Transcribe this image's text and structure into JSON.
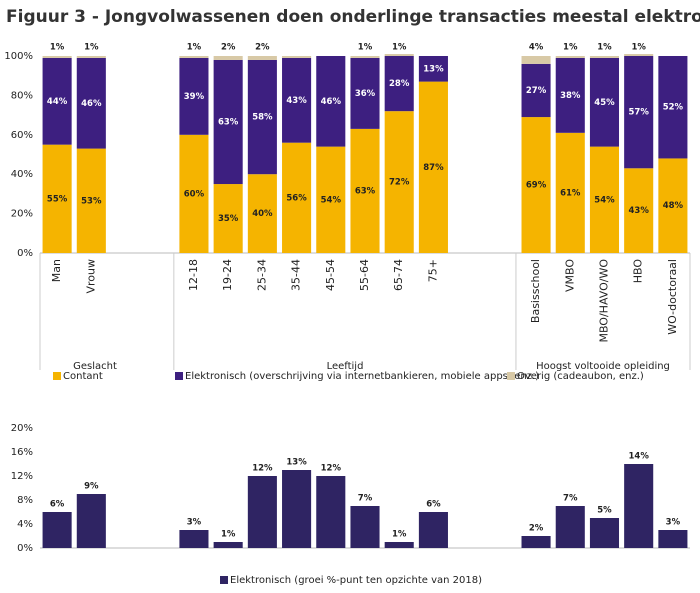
{
  "chart_data": [
    {
      "type": "bar",
      "stacked": true,
      "title": "Figuur 3 - Jongvolwassenen doen onderlinge transacties meestal elektronisch",
      "categories": [
        "Man",
        "Vrouw",
        null,
        null,
        "12-18",
        "19-24",
        "25-34",
        "35-44",
        "45-54",
        "55-64",
        "65-74",
        "75+",
        null,
        null,
        "Basisschool",
        "VMBO",
        "MBO/HAVO/WO",
        "HBO",
        "WO-doctoraal"
      ],
      "annotations": [
        "Geslacht",
        "Leeftijd",
        "Hoogst voltooide opleiding"
      ],
      "series": [
        {
          "name": "Contant",
          "color": "#f5b400",
          "values": [
            55,
            53,
            null,
            null,
            60,
            35,
            40,
            56,
            54,
            63,
            72,
            87,
            null,
            null,
            69,
            61,
            54,
            43,
            48
          ],
          "value_labels": [
            "55%",
            "53%",
            null,
            null,
            "60%",
            "35%",
            "40%",
            "56%",
            "54%",
            "63%",
            "72%",
            "87%",
            null,
            null,
            "69%",
            "61%",
            "54%",
            "43%",
            "48%"
          ]
        },
        {
          "name": "Elektronisch (overschrijving via internetbankieren, mobiele apps, enz.)",
          "color": "#3d1f80",
          "values": [
            44,
            46,
            null,
            null,
            39,
            63,
            58,
            43,
            46,
            36,
            28,
            13,
            null,
            null,
            27,
            38,
            45,
            57,
            52
          ],
          "value_labels": [
            "44%",
            "46%",
            null,
            null,
            "39%",
            "63%",
            "58%",
            "43%",
            "46%",
            "36%",
            "28%",
            "13%",
            null,
            null,
            "27%",
            "38%",
            "45%",
            "57%",
            "52%"
          ]
        },
        {
          "name": "Overig (cadeaubon, enz.)",
          "color": "#d8c9a6",
          "values": [
            1,
            1,
            null,
            null,
            1,
            2,
            2,
            1,
            0,
            1,
            1,
            0,
            null,
            null,
            4,
            1,
            1,
            1,
            0
          ],
          "value_labels": [
            "1%",
            "1%",
            null,
            null,
            "1%",
            "2%",
            "2%",
            null,
            null,
            "1%",
            "1%",
            null,
            null,
            null,
            "4%",
            "1%",
            "1%",
            "1%",
            null
          ]
        }
      ],
      "ylim": [
        0,
        100
      ],
      "yticks": [
        {
          "value": 0,
          "label": "0%"
        },
        {
          "value": 20,
          "label": "20%"
        },
        {
          "value": 40,
          "label": "40%"
        },
        {
          "value": 60,
          "label": "60%"
        },
        {
          "value": 80,
          "label": "80%"
        },
        {
          "value": 100,
          "label": "100%"
        }
      ]
    },
    {
      "type": "bar",
      "categories": [
        null,
        null,
        null,
        null,
        null,
        null,
        null,
        null,
        null,
        null,
        null,
        null,
        null,
        null,
        null,
        null,
        null,
        null,
        null
      ],
      "series": [
        {
          "name": "Elektronisch (groei %-punt ten opzichte van 2018)",
          "color": "#2f2463",
          "values": [
            6,
            9,
            null,
            null,
            3,
            1,
            12,
            13,
            12,
            7,
            1,
            6,
            null,
            null,
            2,
            7,
            5,
            14,
            3
          ],
          "value_labels": [
            "6%",
            "9%",
            null,
            null,
            "3%",
            "1%",
            "12%",
            "13%",
            "12%",
            "7%",
            "1%",
            "6%",
            null,
            null,
            "2%",
            "7%",
            "5%",
            "14%",
            "3%"
          ]
        }
      ],
      "ylim": [
        0,
        20
      ],
      "yticks": [
        {
          "value": 0,
          "label": "0%"
        },
        {
          "value": 4,
          "label": "4%"
        },
        {
          "value": 8,
          "label": "8%"
        },
        {
          "value": 12,
          "label": "12%"
        },
        {
          "value": 16,
          "label": "16%"
        },
        {
          "value": 20,
          "label": "20%"
        }
      ]
    }
  ]
}
